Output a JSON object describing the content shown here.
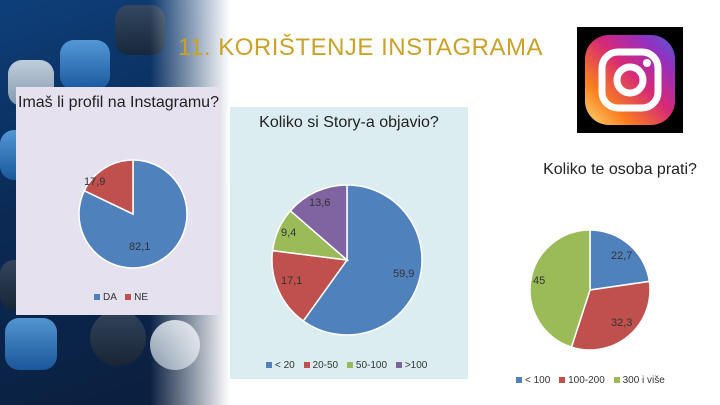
{
  "title": "11. KORIŠTENJE INSTAGRAMA",
  "logo": {
    "icon": "instagram-logo-icon",
    "gradient": [
      "#feda75",
      "#fa7e1e",
      "#d62976",
      "#962fbf",
      "#4f5bd5"
    ]
  },
  "chart_data": [
    {
      "type": "pie",
      "title": "Imaš li profil na Instagramu?",
      "categories": [
        "DA",
        "NE"
      ],
      "values": [
        82.1,
        17.9
      ],
      "labels": [
        "82,1",
        "17,9"
      ],
      "colors": [
        "#4f81bd",
        "#c0504d"
      ],
      "legend": "bottom"
    },
    {
      "type": "pie",
      "title": "Koliko si Story-a objavio?",
      "categories": [
        "< 20",
        "20-50",
        "50-100",
        ">100"
      ],
      "values": [
        59.9,
        17.1,
        9.4,
        13.6
      ],
      "labels": [
        "59,9",
        "17,1",
        "9,4",
        "13,6"
      ],
      "colors": [
        "#4f81bd",
        "#c0504d",
        "#9bbb59",
        "#8064a2"
      ],
      "legend": "bottom"
    },
    {
      "type": "pie",
      "title": "Koliko te osoba prati?",
      "categories": [
        "< 100",
        "100-200",
        "300 i više"
      ],
      "values": [
        22.7,
        32.3,
        45
      ],
      "labels": [
        "22,7",
        "32,3",
        "45"
      ],
      "colors": [
        "#4f81bd",
        "#c0504d",
        "#9bbb59"
      ],
      "legend": "bottom"
    }
  ]
}
